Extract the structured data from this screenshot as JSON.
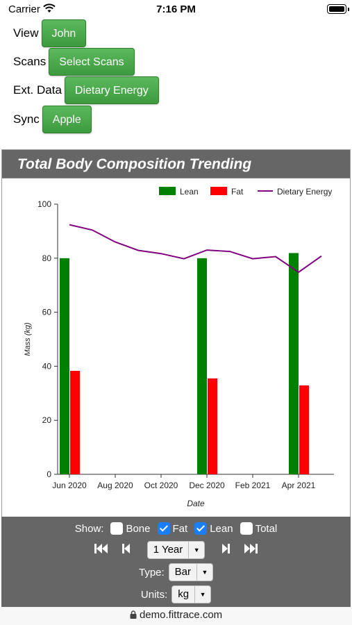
{
  "status_bar": {
    "carrier": "Carrier",
    "time": "7:16 PM"
  },
  "controls": {
    "view": {
      "label": "View",
      "button": "John"
    },
    "scans": {
      "label": "Scans",
      "button": "Select Scans"
    },
    "ext_data": {
      "label": "Ext. Data",
      "button": "Dietary Energy"
    },
    "sync": {
      "label": "Sync",
      "button": "Apple"
    },
    "button_color": "#4cae4c"
  },
  "chart_panel": {
    "title": "Total Body Composition Trending"
  },
  "chart_data": {
    "type": "bar",
    "title": "Total Body Composition Trending",
    "xlabel": "Date",
    "ylabel": "Mass (kg)",
    "ylim": [
      0,
      100
    ],
    "yticks": [
      0,
      20,
      40,
      60,
      80,
      100
    ],
    "xticks": [
      "Jun 2020",
      "Aug 2020",
      "Oct 2020",
      "Dec 2020",
      "Feb 2021",
      "Apr 2021"
    ],
    "legend": [
      "Lean",
      "Fat",
      "Dietary Energy"
    ],
    "legend_position": "top-right",
    "bars": [
      {
        "date": "2020-06",
        "lean": 80,
        "fat": 38.3
      },
      {
        "date": "2020-12",
        "lean": 80,
        "fat": 35.5
      },
      {
        "date": "2021-04",
        "lean": 81.9,
        "fat": 32.9
      }
    ],
    "line": {
      "name": "Dietary Energy",
      "x": [
        "2020-06",
        "2020-07",
        "2020-08",
        "2020-09",
        "2020-10",
        "2020-11",
        "2020-12",
        "2021-01",
        "2021-02",
        "2021-03",
        "2021-04",
        "2021-05"
      ],
      "y": [
        92.4,
        90.4,
        86.0,
        82.9,
        81.7,
        79.8,
        83.0,
        82.5,
        79.8,
        80.6,
        74.8,
        80.8
      ]
    },
    "colors": {
      "lean": "#008000",
      "fat": "#ff0000",
      "line": "#800080"
    },
    "grid": false
  },
  "bottom_controls": {
    "show_label": "Show:",
    "checkboxes": [
      {
        "label": "Bone",
        "checked": false
      },
      {
        "label": "Fat",
        "checked": true
      },
      {
        "label": "Lean",
        "checked": true
      },
      {
        "label": "Total",
        "checked": false
      }
    ],
    "range_value": "1 Year",
    "type_label": "Type:",
    "type_value": "Bar",
    "units_label": "Units:",
    "units_value": "kg",
    "nav_icons": [
      "first-icon",
      "prev-icon",
      "next-icon",
      "last-icon"
    ]
  },
  "url_bar": {
    "text": "demo.fittrace.com"
  }
}
